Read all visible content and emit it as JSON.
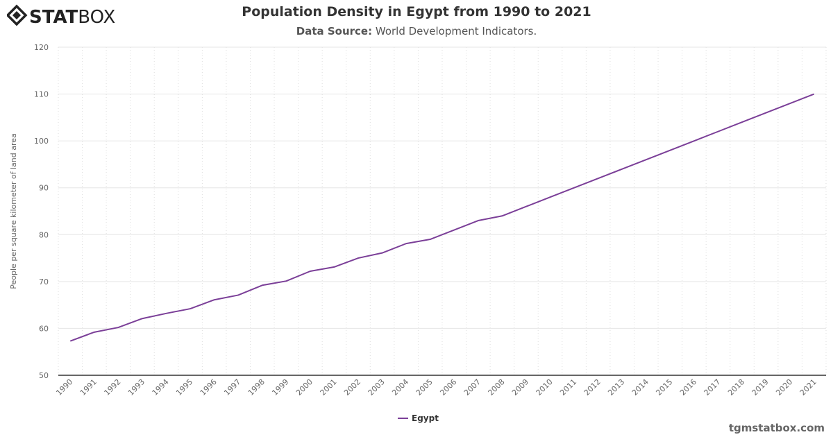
{
  "brand": {
    "logo_text_bold": "STAT",
    "logo_text_light": "BOX",
    "watermark": "tgmstatbox.com"
  },
  "header": {
    "title": "Population Density in Egypt from 1990 to 2021",
    "source_label": "Data Source:",
    "source_value": "World Development Indicators."
  },
  "chart_data": {
    "type": "line",
    "title": "Population Density in Egypt from 1990 to 2021",
    "subtitle": "Data Source: World Development Indicators.",
    "xlabel": "",
    "ylabel": "People per square kilometer of land area",
    "ylim": [
      50,
      120
    ],
    "yticks": [
      50,
      60,
      70,
      80,
      90,
      100,
      110,
      120
    ],
    "grid": true,
    "legend": "bottom-center",
    "categories": [
      "1990",
      "1991",
      "1992",
      "1993",
      "1994",
      "1995",
      "1996",
      "1997",
      "1998",
      "1999",
      "2000",
      "2001",
      "2002",
      "2003",
      "2004",
      "2005",
      "2006",
      "2007",
      "2008",
      "2009",
      "2010",
      "2011",
      "2012",
      "2013",
      "2014",
      "2015",
      "2016",
      "2017",
      "2018",
      "2019",
      "2020",
      "2021"
    ],
    "series": [
      {
        "name": "Egypt",
        "color": "#7b3f98",
        "values": [
          57.3,
          59.2,
          60.2,
          62.1,
          63.2,
          64.2,
          66.1,
          67.1,
          69.2,
          70.1,
          72.2,
          73.1,
          75.0,
          76.1,
          78.1,
          79.0,
          81.0,
          83.0,
          84.0,
          86.0,
          88.0,
          90.0,
          92.0,
          94.0,
          96.0,
          98.0,
          100.0,
          102.0,
          104.0,
          106.0,
          108.0,
          110.0
        ]
      }
    ]
  }
}
